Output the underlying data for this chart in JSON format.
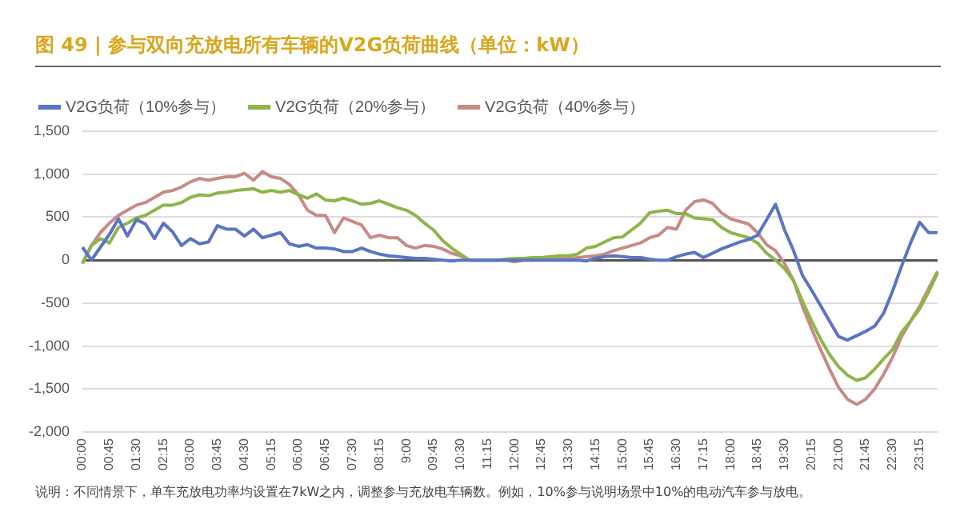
{
  "chart_data": {
    "type": "line",
    "title": "图 49 | 参与双向充放电所有车辆的V2G负荷曲线（单位：kW）",
    "categories": [
      "00:00",
      null,
      null,
      "00:45",
      null,
      null,
      "01:30",
      null,
      null,
      "02:15",
      null,
      null,
      "03:00",
      null,
      null,
      "03:45",
      null,
      null,
      "04:30",
      null,
      null,
      "05:15",
      null,
      null,
      "06:00",
      null,
      null,
      "06:45",
      null,
      null,
      "07:30",
      null,
      null,
      "08:15",
      null,
      null,
      "9:00",
      null,
      null,
      "09:45",
      null,
      null,
      "10:30",
      null,
      null,
      "11:15",
      null,
      null,
      "12:00",
      null,
      null,
      "12:45",
      null,
      null,
      "13:30",
      null,
      null,
      "14:15",
      null,
      null,
      "15:00",
      null,
      null,
      "15:45",
      null,
      null,
      "16:30",
      null,
      null,
      "17:15",
      null,
      null,
      "18:00",
      null,
      null,
      "18:45",
      null,
      null,
      "19:30",
      null,
      null,
      "20:15",
      null,
      null,
      "21:00",
      null,
      null,
      "21:45",
      null,
      null,
      "22:30",
      null,
      null,
      "23:15",
      null,
      null
    ],
    "series": [
      {
        "name": "V2G负荷（10%参与）",
        "color": "#5b74c3",
        "values": [
          150,
          0,
          150,
          300,
          480,
          280,
          470,
          420,
          250,
          430,
          330,
          170,
          250,
          190,
          210,
          400,
          360,
          360,
          280,
          360,
          260,
          290,
          320,
          190,
          160,
          180,
          140,
          140,
          130,
          100,
          100,
          140,
          100,
          70,
          50,
          40,
          30,
          20,
          20,
          10,
          0,
          -10,
          0,
          0,
          0,
          0,
          0,
          0,
          0,
          0,
          0,
          0,
          0,
          0,
          0,
          0,
          -10,
          20,
          40,
          50,
          40,
          30,
          30,
          10,
          0,
          0,
          40,
          70,
          90,
          30,
          80,
          130,
          170,
          210,
          240,
          290,
          470,
          650,
          350,
          110,
          -180,
          -350,
          -530,
          -710,
          -890,
          -930,
          -880,
          -830,
          -770,
          -620,
          -360,
          -70,
          200,
          440,
          320,
          320
        ]
      },
      {
        "name": "V2G负荷（20%参与）",
        "color": "#8db54a",
        "values": [
          -40,
          170,
          250,
          200,
          380,
          430,
          490,
          520,
          580,
          640,
          640,
          670,
          730,
          760,
          750,
          780,
          790,
          810,
          820,
          830,
          790,
          810,
          790,
          810,
          760,
          720,
          770,
          700,
          690,
          720,
          690,
          650,
          660,
          690,
          650,
          610,
          580,
          520,
          430,
          350,
          230,
          140,
          70,
          0,
          0,
          0,
          0,
          10,
          20,
          20,
          30,
          30,
          40,
          50,
          50,
          70,
          140,
          160,
          210,
          260,
          270,
          350,
          430,
          550,
          570,
          580,
          540,
          540,
          490,
          480,
          470,
          380,
          320,
          290,
          260,
          200,
          80,
          0,
          -100,
          -240,
          -480,
          -710,
          -920,
          -1100,
          -1240,
          -1340,
          -1400,
          -1370,
          -1270,
          -1150,
          -1040,
          -840,
          -710,
          -570,
          -370,
          -150
        ]
      },
      {
        "name": "V2G负荷（40%参与）",
        "color": "#c98a86",
        "values": [
          -40,
          170,
          320,
          430,
          520,
          580,
          640,
          670,
          730,
          790,
          810,
          850,
          910,
          950,
          930,
          950,
          970,
          970,
          1010,
          930,
          1030,
          970,
          950,
          880,
          760,
          580,
          520,
          520,
          320,
          490,
          450,
          410,
          260,
          290,
          260,
          260,
          170,
          140,
          170,
          160,
          130,
          80,
          50,
          0,
          0,
          0,
          0,
          0,
          -20,
          0,
          10,
          10,
          20,
          20,
          20,
          30,
          40,
          50,
          70,
          110,
          140,
          170,
          200,
          260,
          290,
          380,
          360,
          580,
          680,
          700,
          660,
          550,
          480,
          450,
          420,
          320,
          180,
          110,
          -40,
          -240,
          -540,
          -800,
          -1040,
          -1270,
          -1480,
          -1620,
          -1680,
          -1620,
          -1500,
          -1330,
          -1130,
          -890,
          -710,
          -540,
          -330,
          -130
        ]
      }
    ],
    "ylim": [
      -2000,
      1500
    ],
    "yticks": [
      {
        "value": -2000,
        "label": "-2,000"
      },
      {
        "value": -1500,
        "label": "-1,500"
      },
      {
        "value": -1000,
        "label": "-1,000"
      },
      -500,
      0,
      500,
      {
        "value": 1000,
        "label": "1,000"
      },
      {
        "value": 1500,
        "label": "1,500"
      }
    ],
    "grid": "y",
    "legend": "top left",
    "marker": "none",
    "line_style": "solid",
    "annotations": [
      "说明：不同情景下，单车充放电功率均设置在7kW之内，调整参与充放电车辆数。例如，10%参与说明场景中10%的电动汽车参与放电。"
    ]
  }
}
